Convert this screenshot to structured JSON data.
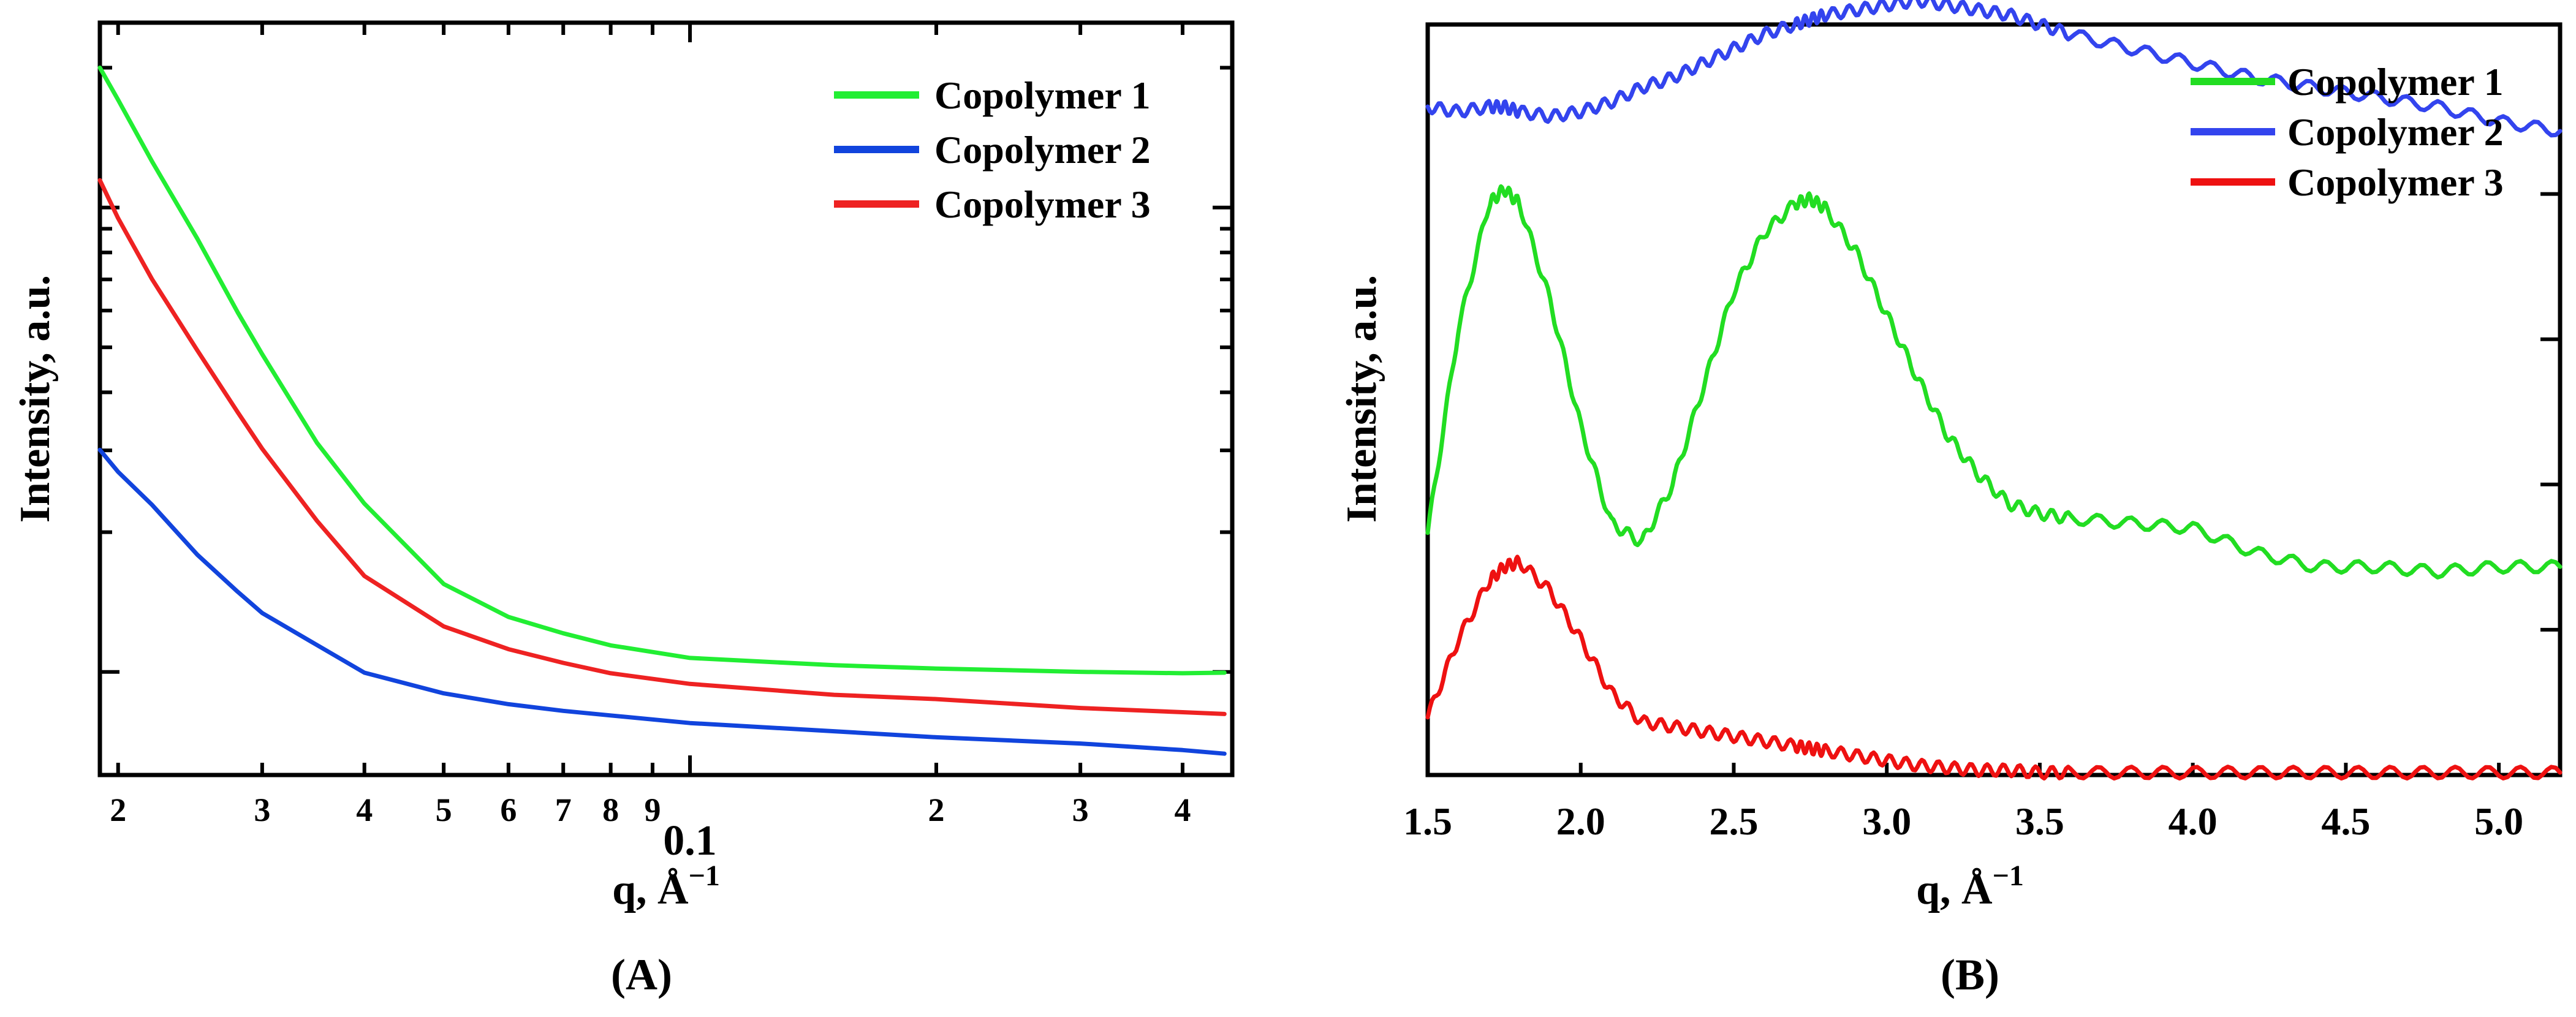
{
  "chart_data": [
    {
      "type": "line",
      "panel_label": "(A)",
      "title": "",
      "xlabel": "q, Å",
      "xlabel_superscript": "−1",
      "ylabel": "Intensity, a.u.",
      "xscale": "log",
      "yscale": "log",
      "xlim": [
        0.019,
        0.46
      ],
      "ylim": [
        0.6,
        25
      ],
      "grid": false,
      "legend_position": "top-right",
      "x_tick_labels": [
        "2",
        "3",
        "4",
        "5",
        "6",
        "7",
        "8",
        "9",
        "0.1",
        "2",
        "3",
        "4"
      ],
      "x": [
        0.019,
        0.02,
        0.022,
        0.025,
        0.028,
        0.03,
        0.035,
        0.04,
        0.05,
        0.06,
        0.07,
        0.08,
        0.1,
        0.15,
        0.2,
        0.3,
        0.4,
        0.45
      ],
      "series": [
        {
          "name": "Copolymer 1",
          "color": "#22ee33",
          "values": [
            20,
            17,
            12.5,
            8.5,
            5.9,
            4.8,
            3.1,
            2.3,
            1.55,
            1.32,
            1.22,
            1.15,
            1.08,
            1.04,
            1.02,
            1.0,
            0.99,
            0.99
          ]
        },
        {
          "name": "Copolymer 2",
          "color": "#1144dd",
          "values": [
            3.0,
            2.7,
            2.3,
            1.8,
            1.5,
            1.35,
            1.15,
            1.0,
            0.9,
            0.85,
            0.82,
            0.8,
            0.77,
            0.74,
            0.72,
            0.7,
            0.68,
            0.67
          ]
        },
        {
          "name": "Copolymer 3",
          "color": "#ee2222",
          "values": [
            11.5,
            9.5,
            7.0,
            4.9,
            3.6,
            3.0,
            2.1,
            1.6,
            1.25,
            1.12,
            1.05,
            1.0,
            0.95,
            0.9,
            0.88,
            0.84,
            0.82,
            0.81
          ]
        }
      ]
    },
    {
      "type": "line",
      "panel_label": "(B)",
      "title": "",
      "xlabel": "q, Å",
      "xlabel_superscript": "−1",
      "ylabel": "Intensity, a.u.",
      "xlim": [
        1.5,
        5.2
      ],
      "ylim": [
        0,
        1.55
      ],
      "grid": false,
      "legend_position": "top-right",
      "x_tick_labels": [
        "1.5",
        "2.0",
        "2.5",
        "3.0",
        "3.5",
        "4.0",
        "4.5",
        "5.0"
      ],
      "x": [
        1.5,
        1.6,
        1.7,
        1.75,
        1.8,
        1.9,
        2.0,
        2.1,
        2.2,
        2.3,
        2.4,
        2.5,
        2.6,
        2.7,
        2.75,
        2.8,
        2.9,
        3.0,
        3.1,
        3.2,
        3.3,
        3.4,
        3.5,
        3.6,
        3.8,
        4.0,
        4.2,
        4.4,
        4.6,
        4.8,
        5.0,
        5.2
      ],
      "series": [
        {
          "name": "Copolymer 1",
          "color": "#22dd22",
          "values": [
            0.5,
            0.92,
            1.18,
            1.21,
            1.18,
            0.98,
            0.72,
            0.52,
            0.48,
            0.6,
            0.8,
            1.0,
            1.12,
            1.18,
            1.19,
            1.17,
            1.08,
            0.95,
            0.82,
            0.7,
            0.62,
            0.56,
            0.54,
            0.53,
            0.52,
            0.51,
            0.46,
            0.43,
            0.43,
            0.42,
            0.43,
            0.43
          ]
        },
        {
          "name": "Copolymer 2",
          "color": "#3344ee",
          "values": [
            1.38,
            1.37,
            1.38,
            1.38,
            1.37,
            1.36,
            1.37,
            1.39,
            1.42,
            1.44,
            1.47,
            1.5,
            1.53,
            1.55,
            1.56,
            1.57,
            1.58,
            1.59,
            1.6,
            1.59,
            1.58,
            1.57,
            1.55,
            1.53,
            1.5,
            1.47,
            1.44,
            1.42,
            1.4,
            1.38,
            1.35,
            1.33
          ]
        },
        {
          "name": "Copolymer 3",
          "color": "#ee1111",
          "values": [
            0.12,
            0.28,
            0.4,
            0.43,
            0.44,
            0.38,
            0.28,
            0.17,
            0.11,
            0.1,
            0.09,
            0.08,
            0.07,
            0.06,
            0.055,
            0.05,
            0.04,
            0.03,
            0.02,
            0.015,
            0.01,
            0.01,
            0.005,
            0.005,
            0.005,
            0.005,
            0.005,
            0.005,
            0.005,
            0.005,
            0.005,
            0.005
          ]
        }
      ]
    }
  ]
}
